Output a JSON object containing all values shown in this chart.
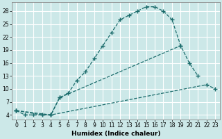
{
  "title": "",
  "xlabel": "Humidex (Indice chaleur)",
  "bg_color": "#cce8e8",
  "grid_color": "#ffffff",
  "line_color": "#1a6b6b",
  "line1": [
    [
      0,
      5
    ],
    [
      1,
      4
    ],
    [
      2,
      4
    ],
    [
      3,
      4
    ],
    [
      4,
      4
    ],
    [
      5,
      8
    ],
    [
      6,
      9
    ],
    [
      7,
      12
    ],
    [
      8,
      14
    ],
    [
      9,
      17
    ],
    [
      10,
      20
    ],
    [
      11,
      23
    ],
    [
      12,
      26
    ],
    [
      13,
      27
    ],
    [
      14,
      28
    ],
    [
      15,
      29
    ],
    [
      16,
      29
    ],
    [
      17,
      28
    ],
    [
      18,
      26
    ],
    [
      19,
      20
    ]
  ],
  "line2": [
    [
      0,
      5
    ],
    [
      3,
      4
    ],
    [
      4,
      4
    ],
    [
      5,
      8
    ],
    [
      19,
      20
    ],
    [
      20,
      16
    ],
    [
      21,
      13
    ]
  ],
  "line3": [
    [
      0,
      5
    ],
    [
      4,
      4
    ],
    [
      22,
      11
    ],
    [
      23,
      10
    ]
  ],
  "ylim": [
    3,
    30
  ],
  "xlim": [
    -0.5,
    23.5
  ],
  "yticks": [
    4,
    7,
    10,
    13,
    16,
    19,
    22,
    25,
    28
  ],
  "xticks": [
    0,
    1,
    2,
    3,
    4,
    5,
    6,
    7,
    8,
    9,
    10,
    11,
    12,
    13,
    14,
    15,
    16,
    17,
    18,
    19,
    20,
    21,
    22,
    23
  ],
  "tick_fontsize": 5.5,
  "xlabel_fontsize": 6.5
}
